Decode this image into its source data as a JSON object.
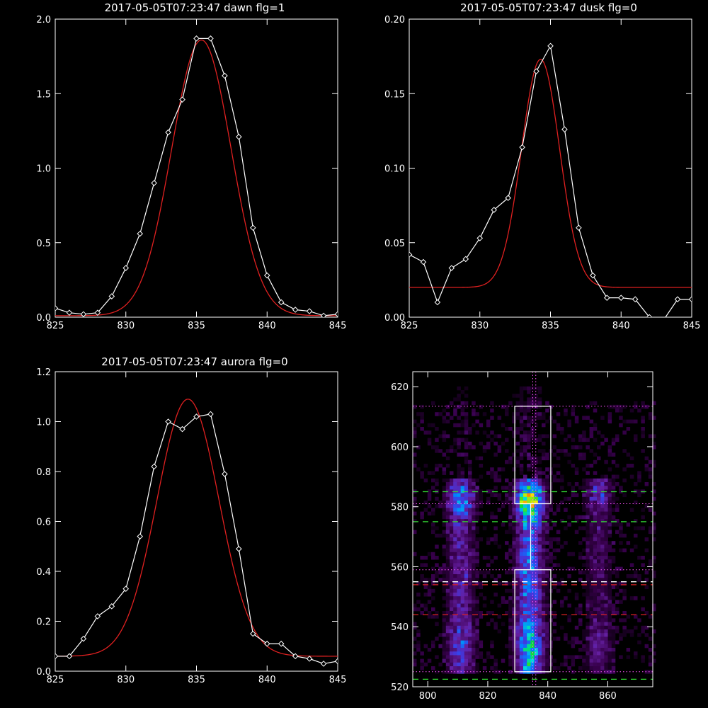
{
  "colors": {
    "background": "#000000",
    "axes": "#ffffff",
    "data_line": "#ffffff",
    "fit_line": "#e02020",
    "box": "#ffffff",
    "dotted_line": "#ff55ff",
    "dashed_green": "#33dd33",
    "dashed_red": "#dd2222",
    "dashed_white": "#ffffff"
  },
  "chart_data": [
    {
      "type": "line",
      "title": "2017-05-05T07:23:47 dawn flg=1",
      "xlim": [
        825,
        845
      ],
      "ylim": [
        0,
        2.0
      ],
      "xticks": [
        "825",
        "830",
        "835",
        "840",
        "845"
      ],
      "yticks": [
        "0.0",
        "0.5",
        "1.0",
        "1.5",
        "2.0"
      ],
      "marker": "diamond",
      "series": [
        {
          "role": "data",
          "x": [
            825,
            826,
            827,
            828,
            829,
            830,
            831,
            832,
            833,
            834,
            835,
            836,
            837,
            838,
            839,
            840,
            841,
            842,
            843,
            844,
            845
          ],
          "y": [
            0.06,
            0.03,
            0.02,
            0.03,
            0.14,
            0.33,
            0.56,
            0.9,
            1.24,
            1.46,
            1.87,
            1.87,
            1.62,
            1.21,
            0.6,
            0.28,
            0.1,
            0.05,
            0.04,
            0.01,
            0.02
          ]
        },
        {
          "role": "fit",
          "gaussian": {
            "amplitude": 1.85,
            "center": 835.35,
            "sigma": 2.1,
            "offset": 0.01
          }
        }
      ]
    },
    {
      "type": "line",
      "title": "2017-05-05T07:23:47 dusk flg=0",
      "xlim": [
        825,
        845
      ],
      "ylim": [
        0,
        0.2
      ],
      "xticks": [
        "825",
        "830",
        "835",
        "840",
        "845"
      ],
      "yticks": [
        "0.00",
        "0.05",
        "0.10",
        "0.15",
        "0.20"
      ],
      "marker": "diamond",
      "series": [
        {
          "role": "data",
          "x": [
            825,
            826,
            827,
            828,
            829,
            830,
            831,
            832,
            833,
            834,
            835,
            836,
            837,
            838,
            839,
            840,
            841,
            842,
            843,
            844,
            845
          ],
          "y": [
            0.042,
            0.037,
            0.01,
            0.033,
            0.039,
            0.053,
            0.072,
            0.08,
            0.114,
            0.165,
            0.182,
            0.126,
            0.06,
            0.028,
            0.013,
            0.013,
            0.012,
            0.0,
            -0.002,
            0.012,
            0.012
          ]
        },
        {
          "role": "fit",
          "gaussian": {
            "amplitude": 0.153,
            "center": 834.3,
            "sigma": 1.35,
            "offset": 0.02
          }
        }
      ]
    },
    {
      "type": "line",
      "title": "2017-05-05T07:23:47 aurora flg=0",
      "xlim": [
        825,
        845
      ],
      "ylim": [
        0,
        1.2
      ],
      "xticks": [
        "825",
        "830",
        "835",
        "840",
        "845"
      ],
      "yticks": [
        "0.0",
        "0.2",
        "0.4",
        "0.6",
        "0.8",
        "1.0",
        "1.2"
      ],
      "marker": "diamond",
      "series": [
        {
          "role": "data",
          "x": [
            825,
            826,
            827,
            828,
            829,
            830,
            831,
            832,
            833,
            834,
            835,
            836,
            837,
            838,
            839,
            840,
            841,
            842,
            843,
            844,
            845
          ],
          "y": [
            0.06,
            0.06,
            0.13,
            0.22,
            0.26,
            0.33,
            0.54,
            0.82,
            1.0,
            0.97,
            1.02,
            1.03,
            0.79,
            0.49,
            0.15,
            0.11,
            0.11,
            0.06,
            0.05,
            0.03,
            0.04
          ]
        },
        {
          "role": "fit",
          "gaussian": {
            "amplitude": 1.03,
            "center": 834.4,
            "sigma": 2.2,
            "offset": 0.06
          }
        }
      ]
    },
    {
      "type": "heatmap",
      "title": "",
      "xlim": [
        795,
        875
      ],
      "ylim": [
        520,
        625
      ],
      "xticks": [
        "800",
        "820",
        "840",
        "860"
      ],
      "yticks": [
        "520",
        "540",
        "560",
        "580",
        "600",
        "620"
      ],
      "colormap": "rainbow",
      "ridges": [
        {
          "center_x": 811,
          "width": 3,
          "y_range": [
            524,
            590
          ],
          "peak_y": 582,
          "intensity": 0.55
        },
        {
          "center_x": 834,
          "width": 3,
          "y_range": [
            524,
            590
          ],
          "peak_y": 582,
          "intensity": 1.0
        },
        {
          "center_x": 857,
          "width": 3,
          "y_range": [
            524,
            590
          ],
          "peak_y": 584,
          "intensity": 0.3
        }
      ],
      "boxes": [
        {
          "x": [
            829,
            841
          ],
          "y": [
            581,
            613.5
          ]
        },
        {
          "x": [
            829,
            841
          ],
          "y": [
            525,
            559
          ]
        }
      ],
      "vertical_dotted_x": [
        835,
        836
      ],
      "horizontal_dotted_y": [
        613.5,
        581,
        559,
        525
      ],
      "horizontal_dashed": [
        {
          "y": 585,
          "color": "green"
        },
        {
          "y": 575,
          "color": "green"
        },
        {
          "y": 555,
          "color": "white"
        },
        {
          "y": 554,
          "color": "red"
        },
        {
          "y": 544,
          "color": "red"
        },
        {
          "y": 522.5,
          "color": "green"
        }
      ]
    }
  ]
}
